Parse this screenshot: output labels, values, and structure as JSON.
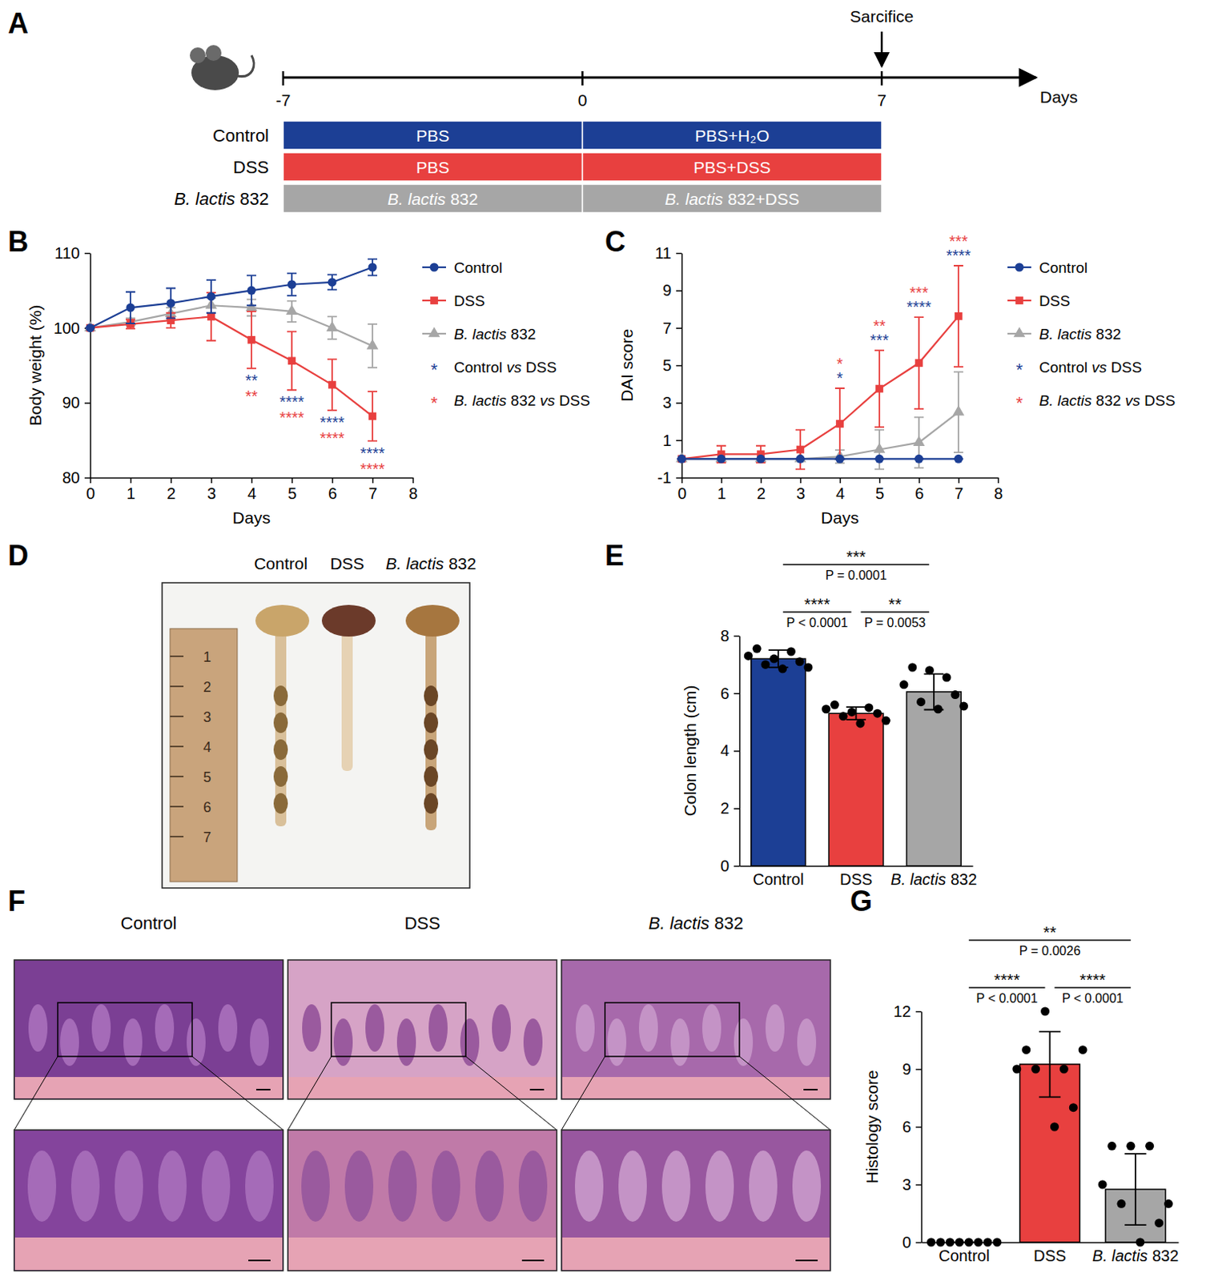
{
  "timeline": {
    "panel": "A",
    "event": "Sarcifice",
    "event_day": 7,
    "range": [
      -7,
      7
    ],
    "ticks": [
      -7,
      0,
      7
    ],
    "axis_label": "Days",
    "groups": [
      {
        "name": "Control",
        "color": "#1c3f95",
        "phases": [
          "PBS",
          "PBS+H₂O"
        ]
      },
      {
        "name": "DSS",
        "color": "#e8403f",
        "phases": [
          "PBS",
          "PBS+DSS"
        ]
      },
      {
        "name": "B. lactis 832",
        "color": "#a6a6a6",
        "phases": [
          "B. lactis 832",
          "B. lactis 832+DSS"
        ]
      }
    ]
  },
  "chart_data": [
    {
      "panel": "B",
      "type": "line",
      "x_label": "Days",
      "y_label": "Body weight (%)",
      "x": [
        0,
        1,
        2,
        3,
        4,
        5,
        6,
        7
      ],
      "xlim": [
        0,
        8
      ],
      "xticks": [
        0,
        1,
        2,
        3,
        4,
        5,
        6,
        7,
        8
      ],
      "ylim": [
        80,
        110
      ],
      "yticks": [
        80,
        90,
        100,
        110
      ],
      "legend": "right",
      "series": [
        {
          "name": "Control",
          "color": "#1c3f95",
          "marker": "circle",
          "values": [
            100,
            102.7,
            103.3,
            104.2,
            105,
            105.8,
            106.1,
            108.1
          ],
          "errors": [
            0,
            2.1,
            2,
            2.2,
            2,
            1.5,
            1,
            1.1
          ]
        },
        {
          "name": "DSS",
          "color": "#e8403f",
          "marker": "square",
          "values": [
            100,
            100.5,
            101,
            101.5,
            98.4,
            95.6,
            92.4,
            88.2
          ],
          "errors": [
            0,
            0.6,
            1,
            3.2,
            3.8,
            3.9,
            3.4,
            3.3
          ]
        },
        {
          "name": "B. lactis 832",
          "color": "#a6a6a6",
          "marker": "triangle",
          "values": [
            100,
            100.8,
            101.9,
            103,
            102.7,
            102.2,
            100,
            97.6
          ],
          "errors": [
            0,
            0.5,
            0.8,
            1,
            1.1,
            1.4,
            1.5,
            2.9
          ]
        }
      ],
      "comparisons": [
        {
          "symbol": "*",
          "name": "Control vs DSS",
          "color": "#1c3f95"
        },
        {
          "symbol": "*",
          "name": "B. lactis 832 vs DSS",
          "color": "#e8403f"
        }
      ],
      "annotation_series": 1,
      "annotations": [
        {
          "x": 4,
          "texts": [
            "**",
            "**"
          ]
        },
        {
          "x": 5,
          "texts": [
            "****",
            "****"
          ]
        },
        {
          "x": 6,
          "texts": [
            "****",
            "****"
          ]
        },
        {
          "x": 7,
          "texts": [
            "****",
            "****"
          ]
        }
      ]
    },
    {
      "panel": "C",
      "type": "line",
      "x_label": "Days",
      "y_label": "DAI score",
      "x": [
        0,
        1,
        2,
        3,
        4,
        5,
        6,
        7
      ],
      "xlim": [
        0,
        8
      ],
      "xticks": [
        0,
        1,
        2,
        3,
        4,
        5,
        6,
        7,
        8
      ],
      "ylim": [
        -1,
        11
      ],
      "yticks": [
        -1,
        1,
        3,
        5,
        7,
        9,
        11
      ],
      "legend": "right",
      "series": [
        {
          "name": "Control",
          "color": "#1c3f95",
          "marker": "circle",
          "values": [
            0,
            0,
            0,
            0,
            0,
            0,
            0,
            0
          ],
          "errors": [
            0,
            0,
            0,
            0,
            0,
            0,
            0,
            0
          ]
        },
        {
          "name": "DSS",
          "color": "#e8403f",
          "marker": "square",
          "values": [
            0,
            0.25,
            0.25,
            0.5,
            1.875,
            3.75,
            5.125,
            7.625
          ],
          "errors": [
            0,
            0.45,
            0.45,
            1.05,
            1.9,
            2.05,
            2.45,
            2.7
          ]
        },
        {
          "name": "B. lactis 832",
          "color": "#a6a6a6",
          "marker": "triangle",
          "values": [
            0,
            0,
            0,
            0,
            0.125,
            0.5,
            0.875,
            2.5
          ],
          "errors": [
            0,
            0,
            0,
            0,
            0.35,
            1.05,
            1.35,
            2.15
          ]
        }
      ],
      "comparisons": [
        {
          "symbol": "*",
          "name": "Control vs DSS",
          "color": "#1c3f95"
        },
        {
          "symbol": "*",
          "name": "B. lactis 832 vs DSS",
          "color": "#e8403f"
        }
      ],
      "annotation_series": 1,
      "annotations": [
        {
          "x": 4,
          "texts": [
            "*",
            "*"
          ]
        },
        {
          "x": 5,
          "texts": [
            "***",
            "**"
          ]
        },
        {
          "x": 6,
          "texts": [
            "****",
            "***"
          ]
        },
        {
          "x": 7,
          "texts": [
            "****",
            "***"
          ]
        }
      ]
    },
    {
      "panel": "E",
      "type": "bar",
      "y_label": "Colon length (cm)",
      "categories": [
        "Control",
        "DSS",
        "B. lactis 832"
      ],
      "values": [
        7.2,
        5.3,
        6.05
      ],
      "errors": [
        0.3,
        0.22,
        0.62
      ],
      "colors": [
        "#1c3f95",
        "#e8403f",
        "#a6a6a6"
      ],
      "points": [
        [
          7.3,
          7.55,
          7.0,
          7.2,
          6.85,
          7.45,
          7.1,
          6.9
        ],
        [
          5.45,
          5.6,
          5.2,
          5.35,
          4.95,
          5.5,
          5.3,
          5.05
        ],
        [
          6.3,
          6.9,
          5.7,
          6.8,
          5.45,
          6.55,
          5.95,
          5.55
        ]
      ],
      "ylim": [
        0,
        8
      ],
      "yticks": [
        0,
        2,
        4,
        6,
        8
      ],
      "brackets": [
        {
          "groups": [
            0,
            2
          ],
          "stars": "***",
          "p": "P = 0.0001"
        },
        {
          "groups": [
            0,
            1
          ],
          "stars": "****",
          "p": "P < 0.0001"
        },
        {
          "groups": [
            1,
            2
          ],
          "stars": "**",
          "p": "P = 0.0053"
        }
      ]
    },
    {
      "panel": "G",
      "type": "bar",
      "y_label": "Histology score",
      "categories": [
        "Control",
        "DSS",
        "B. lactis 832"
      ],
      "values": [
        0,
        9.25,
        2.75
      ],
      "errors": [
        0,
        1.7,
        1.85
      ],
      "colors": [
        "#1c3f95",
        "#e8403f",
        "#a6a6a6"
      ],
      "points": [
        [
          0,
          0,
          0,
          0,
          0,
          0,
          0,
          0
        ],
        [
          9,
          10,
          9,
          12,
          6,
          9,
          7,
          10
        ],
        [
          3,
          5,
          2,
          5,
          0,
          5,
          1,
          2
        ]
      ],
      "ylim": [
        0,
        12
      ],
      "yticks": [
        0,
        3,
        6,
        9,
        12
      ],
      "brackets": [
        {
          "groups": [
            0,
            2
          ],
          "stars": "**",
          "p": "P = 0.0026"
        },
        {
          "groups": [
            0,
            1
          ],
          "stars": "****",
          "p": "P < 0.0001"
        },
        {
          "groups": [
            1,
            2
          ],
          "stars": "****",
          "p": "P < 0.0001"
        }
      ]
    }
  ],
  "colon_photo": {
    "panel": "D",
    "labels": [
      "Control",
      "DSS",
      "B. lactis 832"
    ],
    "ruler_ticks": [
      1,
      2,
      3,
      4,
      5,
      6,
      7
    ]
  },
  "histology_images": {
    "panel": "F",
    "titles": [
      "Control",
      "DSS",
      "B. lactis 832"
    ]
  }
}
